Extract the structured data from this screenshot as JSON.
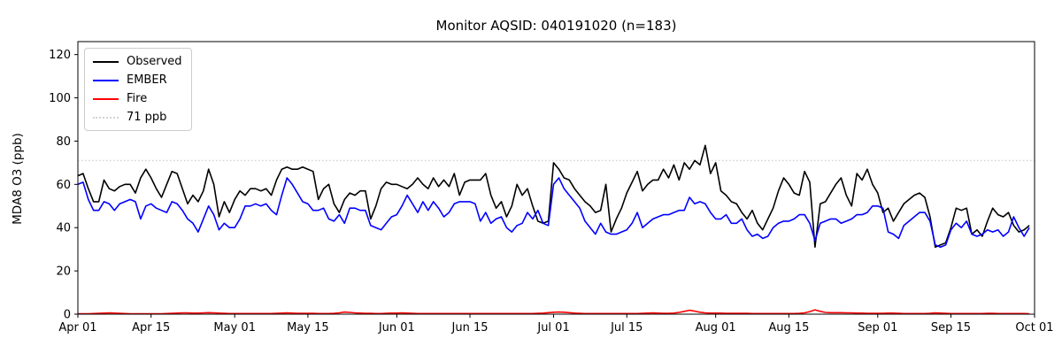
{
  "figure": {
    "title": "Monitor AQSID: 040191020 (n=183)",
    "ylabel": "MDA8 O3 (ppb)"
  },
  "legend": {
    "position": "upper left",
    "items": [
      {
        "label": "Observed",
        "color": "#000000",
        "style": "solid"
      },
      {
        "label": "EMBER",
        "color": "#0000ff",
        "style": "solid"
      },
      {
        "label": "Fire",
        "color": "#ff0000",
        "style": "solid"
      },
      {
        "label": "71 ppb",
        "color": "#d3d3d3",
        "style": "dotted"
      }
    ]
  },
  "axes": {
    "y_ticks": [
      0,
      20,
      40,
      60,
      80,
      100,
      120
    ],
    "x_tick_labels": [
      "Apr 01",
      "Apr 15",
      "May 01",
      "May 15",
      "Jun 01",
      "Jun 15",
      "Jul 01",
      "Jul 15",
      "Aug 01",
      "Aug 15",
      "Sep 01",
      "Sep 15",
      "Oct 01"
    ],
    "x_tick_days": [
      0,
      14,
      30,
      44,
      61,
      75,
      91,
      105,
      122,
      136,
      153,
      167,
      183
    ],
    "total_days": 183,
    "ylim": [
      0,
      126
    ]
  },
  "chart_data": {
    "type": "line",
    "title": "Monitor AQSID: 040191020 (n=183)",
    "xlabel": "",
    "ylabel": "MDA8 O3 (ppb)",
    "x_start": "Apr 01",
    "x_end": "Sep 30",
    "x_unit": "day",
    "n_points": 183,
    "ylim": [
      0,
      126
    ],
    "grid": false,
    "legend_position": "upper left",
    "xtick_labels": [
      "Apr 01",
      "Apr 15",
      "May 01",
      "May 15",
      "Jun 01",
      "Jun 15",
      "Jul 01",
      "Jul 15",
      "Aug 01",
      "Aug 15",
      "Sep 01",
      "Sep 15",
      "Oct 01"
    ],
    "threshold_line": {
      "label": "71 ppb",
      "value": 71,
      "color": "#d3d3d3",
      "style": "dotted"
    },
    "values_note": "daily MDA8 O3 in ppb, estimated from plot, Apr 1 through Sep 30",
    "series": [
      {
        "name": "Observed",
        "color": "#000000",
        "values": [
          64,
          65,
          58,
          52,
          52,
          62,
          58,
          57,
          59,
          60,
          60,
          56,
          63,
          67,
          63,
          58,
          54,
          60,
          66,
          65,
          58,
          51,
          55,
          52,
          57,
          67,
          60,
          45,
          52,
          47,
          53,
          57,
          55,
          58,
          58,
          57,
          58,
          55,
          62,
          67,
          68,
          67,
          67,
          68,
          67,
          66,
          53,
          58,
          60,
          51,
          47,
          53,
          56,
          55,
          57,
          57,
          44,
          50,
          58,
          61,
          60,
          60,
          59,
          58,
          60,
          63,
          60,
          58,
          63,
          59,
          62,
          59,
          65,
          55,
          61,
          62,
          62,
          62,
          65,
          55,
          49,
          52,
          45,
          50,
          60,
          55,
          58,
          50,
          43,
          42,
          43,
          70,
          67,
          63,
          62,
          58,
          55,
          52,
          50,
          47,
          48,
          60,
          38,
          44,
          49,
          56,
          61,
          66,
          57,
          60,
          62,
          62,
          67,
          63,
          69,
          62,
          70,
          67,
          71,
          69,
          78,
          65,
          70,
          57,
          55,
          52,
          51,
          47,
          44,
          48,
          42,
          39,
          44,
          49,
          57,
          63,
          60,
          56,
          55,
          66,
          61,
          31,
          51,
          52,
          56,
          60,
          63,
          55,
          50,
          65,
          62,
          67,
          60,
          56,
          47,
          49,
          43,
          47,
          51,
          53,
          55,
          56,
          54,
          45,
          31,
          32,
          33,
          40,
          49,
          48,
          49,
          37,
          39,
          36,
          43,
          49,
          46,
          45,
          47,
          41,
          38,
          39,
          41
        ]
      },
      {
        "name": "EMBER",
        "color": "#0000ff",
        "values": [
          60,
          61,
          53,
          48,
          48,
          52,
          51,
          48,
          51,
          52,
          53,
          52,
          44,
          50,
          51,
          49,
          48,
          47,
          52,
          51,
          48,
          44,
          42,
          38,
          44,
          50,
          46,
          39,
          42,
          40,
          40,
          44,
          50,
          50,
          51,
          50,
          51,
          48,
          46,
          55,
          63,
          60,
          56,
          52,
          51,
          48,
          48,
          49,
          44,
          43,
          46,
          42,
          49,
          49,
          48,
          48,
          41,
          40,
          39,
          42,
          45,
          46,
          50,
          55,
          51,
          47,
          52,
          48,
          52,
          49,
          45,
          47,
          51,
          52,
          52,
          52,
          51,
          43,
          47,
          42,
          44,
          45,
          40,
          38,
          41,
          42,
          47,
          44,
          48,
          42,
          41,
          60,
          63,
          58,
          55,
          52,
          49,
          43,
          40,
          37,
          42,
          38,
          37,
          37,
          38,
          39,
          42,
          47,
          40,
          42,
          44,
          45,
          46,
          46,
          47,
          48,
          48,
          54,
          51,
          52,
          51,
          47,
          44,
          44,
          46,
          42,
          42,
          44,
          39,
          36,
          37,
          35,
          36,
          40,
          42,
          43,
          43,
          44,
          46,
          46,
          42,
          34,
          42,
          43,
          44,
          44,
          42,
          43,
          44,
          46,
          46,
          47,
          50,
          50,
          49,
          38,
          37,
          35,
          41,
          43,
          45,
          47,
          47,
          43,
          32,
          31,
          32,
          39,
          42,
          40,
          43,
          37,
          36,
          37,
          39,
          38,
          39,
          36,
          38,
          45,
          40,
          36,
          40
        ]
      },
      {
        "name": "Fire",
        "color": "#ff0000",
        "values": [
          0.2,
          0.2,
          0.2,
          0.3,
          0.4,
          0.5,
          0.6,
          0.5,
          0.4,
          0.3,
          0.2,
          0.2,
          0.2,
          0.2,
          0.2,
          0.2,
          0.2,
          0.3,
          0.4,
          0.5,
          0.6,
          0.6,
          0.5,
          0.5,
          0.6,
          0.7,
          0.6,
          0.5,
          0.4,
          0.3,
          0.3,
          0.3,
          0.3,
          0.3,
          0.3,
          0.3,
          0.3,
          0.3,
          0.4,
          0.5,
          0.6,
          0.5,
          0.4,
          0.4,
          0.4,
          0.4,
          0.3,
          0.3,
          0.3,
          0.4,
          0.6,
          1.0,
          0.8,
          0.6,
          0.5,
          0.4,
          0.4,
          0.3,
          0.3,
          0.4,
          0.5,
          0.5,
          0.6,
          0.5,
          0.4,
          0.3,
          0.3,
          0.3,
          0.3,
          0.3,
          0.3,
          0.3,
          0.3,
          0.3,
          0.3,
          0.3,
          0.3,
          0.3,
          0.3,
          0.3,
          0.3,
          0.3,
          0.3,
          0.3,
          0.3,
          0.3,
          0.3,
          0.3,
          0.4,
          0.5,
          0.7,
          0.9,
          1.0,
          0.9,
          0.7,
          0.5,
          0.4,
          0.3,
          0.3,
          0.3,
          0.3,
          0.3,
          0.3,
          0.3,
          0.3,
          0.3,
          0.3,
          0.3,
          0.4,
          0.5,
          0.6,
          0.5,
          0.4,
          0.4,
          0.5,
          0.8,
          1.3,
          1.8,
          1.4,
          0.9,
          0.6,
          0.5,
          0.5,
          0.5,
          0.4,
          0.4,
          0.4,
          0.4,
          0.4,
          0.3,
          0.3,
          0.3,
          0.3,
          0.3,
          0.3,
          0.3,
          0.3,
          0.3,
          0.4,
          0.6,
          1.2,
          2.0,
          1.3,
          0.8,
          0.7,
          0.7,
          0.7,
          0.6,
          0.6,
          0.5,
          0.5,
          0.4,
          0.4,
          0.4,
          0.4,
          0.5,
          0.5,
          0.4,
          0.3,
          0.3,
          0.3,
          0.3,
          0.3,
          0.4,
          0.6,
          0.5,
          0.4,
          0.3,
          0.3,
          0.3,
          0.3,
          0.3,
          0.3,
          0.3,
          0.4,
          0.4,
          0.3,
          0.3,
          0.3,
          0.3,
          0.3,
          0.3,
          0.2
        ]
      }
    ]
  },
  "layout_colors": {
    "background": "#ffffff",
    "frame": "#000000",
    "tick": "#000000",
    "legend_border": "#cccccc"
  }
}
